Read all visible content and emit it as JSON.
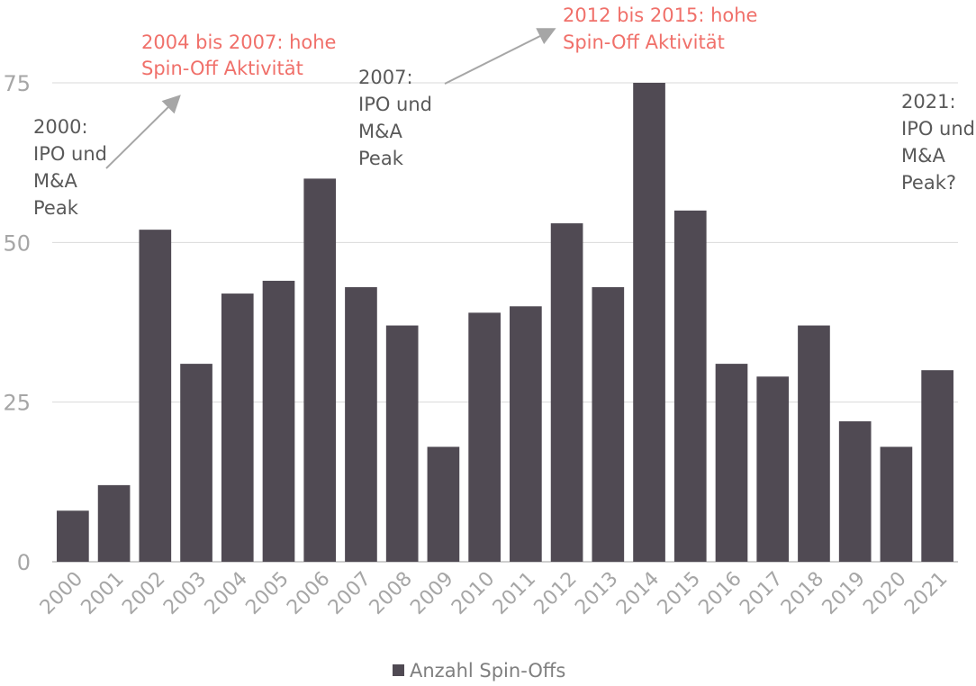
{
  "chart_data": {
    "type": "bar",
    "categories": [
      "2000",
      "2001",
      "2002",
      "2003",
      "2004",
      "2005",
      "2006",
      "2007",
      "2008",
      "2009",
      "2010",
      "2011",
      "2012",
      "2013",
      "2014",
      "2015",
      "2016",
      "2017",
      "2018",
      "2019",
      "2020",
      "2021"
    ],
    "series": [
      {
        "name": "Anzahl Spin-Offs",
        "values": [
          8,
          12,
          52,
          31,
          42,
          44,
          60,
          43,
          37,
          18,
          39,
          40,
          53,
          43,
          75,
          55,
          31,
          29,
          37,
          22,
          18,
          30
        ]
      }
    ],
    "yticks": [
      "0",
      "25",
      "50",
      "75"
    ],
    "ylim": [
      0,
      75
    ],
    "grid": true,
    "legend_position": "bottom",
    "annotations": [
      {
        "id": "a2000",
        "lines": [
          "2000:",
          "IPO und",
          "M&A",
          "Peak"
        ]
      },
      {
        "id": "a2004",
        "lines": [
          "2004 bis 2007: hohe",
          "Spin-Off Aktivität"
        ]
      },
      {
        "id": "a2007",
        "lines": [
          "2007:",
          "IPO und",
          "M&A",
          "Peak"
        ]
      },
      {
        "id": "a2012",
        "lines": [
          "2012 bis 2015: hohe",
          "Spin-Off Aktivität"
        ]
      },
      {
        "id": "a2021",
        "lines": [
          "2021:",
          "IPO und",
          "M&A",
          "Peak?"
        ]
      }
    ],
    "colors": {
      "bar": "#504a53",
      "grid": "#d9d9d9",
      "axis_text": "#a6a6a6",
      "annotation": "#595959",
      "annotation_highlight": "#f0706a",
      "arrow": "#a6a6a6"
    }
  }
}
